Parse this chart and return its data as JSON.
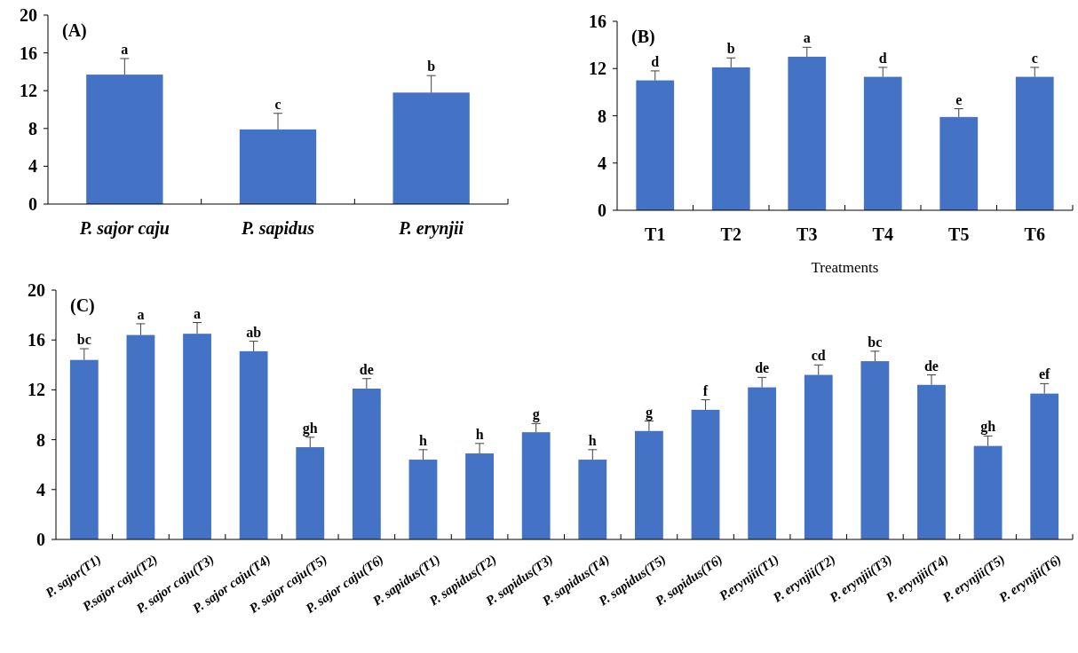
{
  "chart_data": [
    {
      "type": "bar",
      "title": "(A)",
      "categories": [
        "P. sajor caju",
        "P. sapidus",
        "P. erynjii"
      ],
      "values": [
        13.7,
        7.9,
        11.8
      ],
      "color": "#4472c4",
      "errors": [
        [
          13.7,
          15.4
        ],
        [
          7.9,
          9.6
        ],
        [
          11.8,
          13.6
        ]
      ],
      "ylim": [
        0,
        20
      ],
      "yticks": [
        0,
        4,
        8,
        12,
        16,
        20
      ],
      "grid": false,
      "annotations": [
        "a",
        "c",
        "b"
      ]
    },
    {
      "type": "bar",
      "title": "(B)",
      "xlabel": "Treatments",
      "categories": [
        "T1",
        "T2",
        "T3",
        "T4",
        "T5",
        "T6"
      ],
      "values": [
        11.0,
        12.1,
        13.0,
        11.3,
        7.9,
        11.3
      ],
      "color": "#4472c4",
      "errors": [
        [
          11.0,
          11.8
        ],
        [
          12.1,
          12.9
        ],
        [
          13.0,
          13.8
        ],
        [
          11.3,
          12.1
        ],
        [
          7.9,
          8.6
        ],
        [
          11.3,
          12.1
        ]
      ],
      "ylim": [
        0,
        16
      ],
      "yticks": [
        0,
        4,
        8,
        12,
        16
      ],
      "grid": false,
      "annotations": [
        "d",
        "b",
        "a",
        "d",
        "e",
        "c"
      ]
    },
    {
      "type": "bar",
      "title": "(C)",
      "categories": [
        "P. sajor(T1)",
        "P.sajor caju(T2)",
        "P. sajor caju(T3)",
        "P. sajor caju(T4)",
        "P. sajor caju(T5)",
        "P. sajor caju(T6)",
        "P. sapidus(T1)",
        "P. sapidus(T2)",
        "P. sapidus(T3)",
        "P. sapidus(T4)",
        "P. sapidus(T5)",
        "P. sapidus(T6)",
        "P.erynjii(T1)",
        "P. erynjii(T2)",
        "P. erynjii(T3)",
        "P. erynjii(T4)",
        "P. erynjii(T5)",
        "P. erynjii(T6)"
      ],
      "values": [
        14.4,
        16.4,
        16.5,
        15.1,
        7.4,
        12.1,
        6.4,
        6.9,
        8.6,
        6.4,
        8.7,
        10.4,
        12.2,
        13.2,
        14.3,
        12.4,
        7.5,
        11.7
      ],
      "color": "#4472c4",
      "errors": [
        [
          14.4,
          15.3
        ],
        [
          16.4,
          17.3
        ],
        [
          16.5,
          17.4
        ],
        [
          15.1,
          15.9
        ],
        [
          7.4,
          8.2
        ],
        [
          12.1,
          12.9
        ],
        [
          6.4,
          7.2
        ],
        [
          6.9,
          7.7
        ],
        [
          8.6,
          9.3
        ],
        [
          6.4,
          7.2
        ],
        [
          8.7,
          9.5
        ],
        [
          10.4,
          11.2
        ],
        [
          12.2,
          13.0
        ],
        [
          13.2,
          14.0
        ],
        [
          14.3,
          15.1
        ],
        [
          12.4,
          13.2
        ],
        [
          7.5,
          8.3
        ],
        [
          11.7,
          12.5
        ]
      ],
      "ylim": [
        0,
        20
      ],
      "yticks": [
        0,
        4,
        8,
        12,
        16,
        20
      ],
      "grid": false,
      "annotations": [
        "bc",
        "a",
        "a",
        "ab",
        "gh",
        "de",
        "h",
        "h",
        "g",
        "h",
        "g",
        "f",
        "de",
        "cd",
        "bc",
        "de",
        "gh",
        "ef"
      ]
    }
  ]
}
